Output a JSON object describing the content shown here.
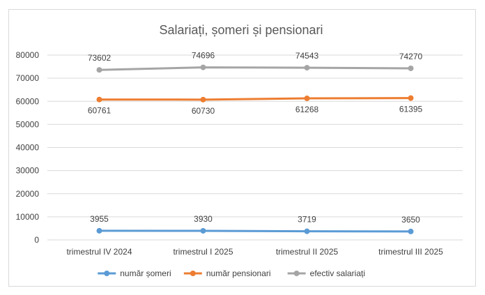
{
  "chart_data": {
    "type": "line",
    "title": "Salariați, șomeri și pensionari",
    "categories": [
      "trimestrul IV 2024",
      "trimestrul I 2025",
      "trimestrul II 2025",
      "trimestrul III 2025"
    ],
    "series": [
      {
        "name": "număr șomeri",
        "color": "#5b9bd5",
        "values": [
          3955,
          3930,
          3719,
          3650
        ],
        "label_position": "above"
      },
      {
        "name": "număr pensionari",
        "color": "#ed7d31",
        "values": [
          60761,
          60730,
          61268,
          61395
        ],
        "label_position": "below"
      },
      {
        "name": "efectiv salariați",
        "color": "#a5a5a5",
        "values": [
          73602,
          74696,
          74543,
          74270
        ],
        "label_position": "above"
      }
    ],
    "ylim": [
      0,
      80000
    ],
    "yticks": [
      "0",
      "10000",
      "20000",
      "30000",
      "40000",
      "50000",
      "60000",
      "70000",
      "80000"
    ],
    "grid": true,
    "legend_position": "bottom"
  }
}
